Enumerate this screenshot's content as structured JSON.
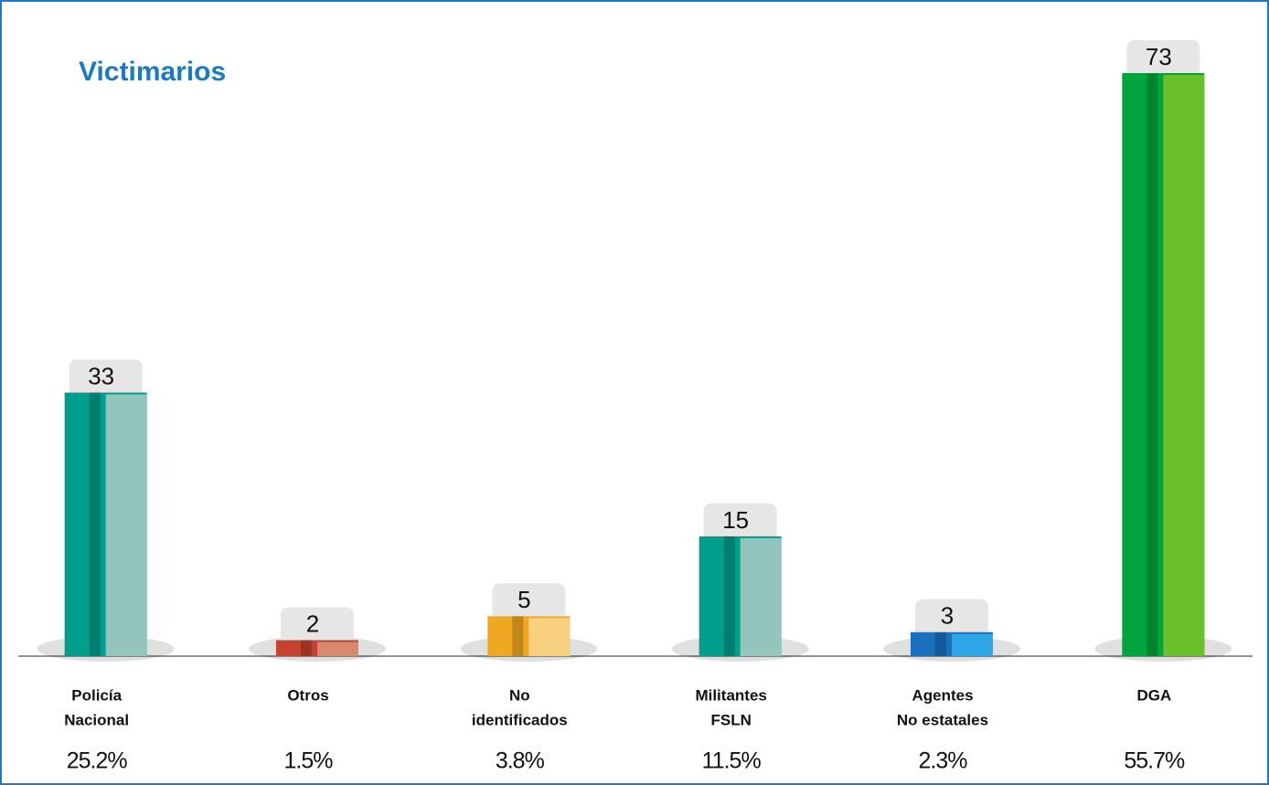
{
  "chart_data": {
    "type": "bar",
    "title": "Victimarios",
    "categories": [
      [
        "Policía",
        "Nacional"
      ],
      [
        "Otros"
      ],
      [
        "No",
        "identificados"
      ],
      [
        "Militantes",
        "FSLN"
      ],
      [
        "Agentes",
        "No estatales"
      ],
      [
        "DGA"
      ]
    ],
    "values": [
      33,
      2,
      5,
      15,
      3,
      73
    ],
    "percent_labels": [
      "25.2%",
      "1.5%",
      "3.8%",
      "11.5%",
      "2.3%",
      "55.7%"
    ],
    "colors": [
      "#009e8c",
      "#c4422f",
      "#f0a821",
      "#009e8c",
      "#1a6fbf",
      "#00a63b"
    ],
    "light_colors": [
      "#93c5bd",
      "#d98870",
      "#f8d080",
      "#93c5bd",
      "#2ca6e4",
      "#6abf2b"
    ]
  }
}
